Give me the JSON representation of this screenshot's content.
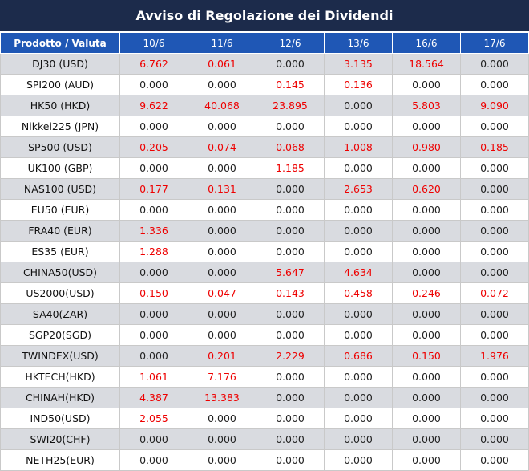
{
  "title": "Avviso di Regolazione dei Dividendi",
  "columns": [
    "Prodotto / Valuta",
    "10/6",
    "11/6",
    "12/6",
    "13/6",
    "16/6",
    "17/6"
  ],
  "colors": {
    "header_dark": "#1c2b4b",
    "header_blue": "#1f57b5",
    "highlight_red": "#ee0000",
    "alt_row": "#d9dbe0"
  },
  "rows": [
    {
      "product": "DJ30 (USD)",
      "values": [
        "6.762",
        "0.061",
        "0.000",
        "3.135",
        "18.564",
        "0.000"
      ]
    },
    {
      "product": "SPI200 (AUD)",
      "values": [
        "0.000",
        "0.000",
        "0.145",
        "0.136",
        "0.000",
        "0.000"
      ]
    },
    {
      "product": "HK50 (HKD)",
      "values": [
        "9.622",
        "40.068",
        "23.895",
        "0.000",
        "5.803",
        "9.090"
      ]
    },
    {
      "product": "Nikkei225 (JPN)",
      "values": [
        "0.000",
        "0.000",
        "0.000",
        "0.000",
        "0.000",
        "0.000"
      ]
    },
    {
      "product": "SP500 (USD)",
      "values": [
        "0.205",
        "0.074",
        "0.068",
        "1.008",
        "0.980",
        "0.185"
      ]
    },
    {
      "product": "UK100 (GBP)",
      "values": [
        "0.000",
        "0.000",
        "1.185",
        "0.000",
        "0.000",
        "0.000"
      ]
    },
    {
      "product": "NAS100 (USD)",
      "values": [
        "0.177",
        "0.131",
        "0.000",
        "2.653",
        "0.620",
        "0.000"
      ]
    },
    {
      "product": "EU50 (EUR)",
      "values": [
        "0.000",
        "0.000",
        "0.000",
        "0.000",
        "0.000",
        "0.000"
      ]
    },
    {
      "product": "FRA40 (EUR)",
      "values": [
        "1.336",
        "0.000",
        "0.000",
        "0.000",
        "0.000",
        "0.000"
      ]
    },
    {
      "product": "ES35 (EUR)",
      "values": [
        "1.288",
        "0.000",
        "0.000",
        "0.000",
        "0.000",
        "0.000"
      ]
    },
    {
      "product": "CHINA50(USD)",
      "values": [
        "0.000",
        "0.000",
        "5.647",
        "4.634",
        "0.000",
        "0.000"
      ]
    },
    {
      "product": "US2000(USD)",
      "values": [
        "0.150",
        "0.047",
        "0.143",
        "0.458",
        "0.246",
        "0.072"
      ]
    },
    {
      "product": "SA40(ZAR)",
      "values": [
        "0.000",
        "0.000",
        "0.000",
        "0.000",
        "0.000",
        "0.000"
      ]
    },
    {
      "product": "SGP20(SGD)",
      "values": [
        "0.000",
        "0.000",
        "0.000",
        "0.000",
        "0.000",
        "0.000"
      ]
    },
    {
      "product": "TWINDEX(USD)",
      "values": [
        "0.000",
        "0.201",
        "2.229",
        "0.686",
        "0.150",
        "1.976"
      ]
    },
    {
      "product": "HKTECH(HKD)",
      "values": [
        "1.061",
        "7.176",
        "0.000",
        "0.000",
        "0.000",
        "0.000"
      ]
    },
    {
      "product": "CHINAH(HKD)",
      "values": [
        "4.387",
        "13.383",
        "0.000",
        "0.000",
        "0.000",
        "0.000"
      ]
    },
    {
      "product": "IND50(USD)",
      "values": [
        "2.055",
        "0.000",
        "0.000",
        "0.000",
        "0.000",
        "0.000"
      ]
    },
    {
      "product": "SWI20(CHF)",
      "values": [
        "0.000",
        "0.000",
        "0.000",
        "0.000",
        "0.000",
        "0.000"
      ]
    },
    {
      "product": "NETH25(EUR)",
      "values": [
        "0.000",
        "0.000",
        "0.000",
        "0.000",
        "0.000",
        "0.000"
      ]
    }
  ]
}
